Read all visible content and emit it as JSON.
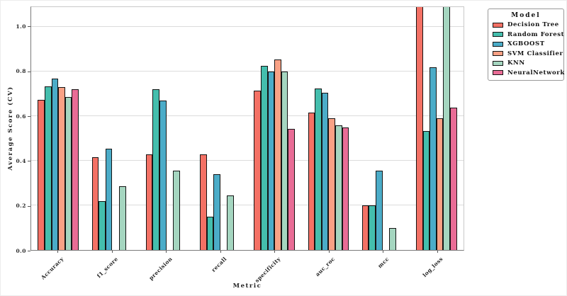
{
  "figure": {
    "x_axis_label": "Metric",
    "y_axis_label": "Average Score (CV)",
    "legend_title": "Model"
  },
  "chart_data": {
    "type": "bar",
    "title": "",
    "xlabel": "Metric",
    "ylabel": "Average Score (CV)",
    "ylim": [
      0,
      1.09
    ],
    "yticks": [
      0.0,
      0.2,
      0.4,
      0.6,
      0.8,
      1.0
    ],
    "ytick_labels": [
      "0.0",
      "0.2",
      "0.4",
      "0.6",
      "0.8",
      "1.0"
    ],
    "grid": "horizontal",
    "legend_title": "Model",
    "legend_position": "outside-upper-right",
    "categories": [
      "Accuracy",
      "f1_score",
      "precision",
      "recall",
      "specificity",
      "auc_roc",
      "mcc",
      "log_loss"
    ],
    "series": [
      {
        "name": "Decision Tree",
        "color": "#F47165",
        "values": [
          0.675,
          0.415,
          0.43,
          0.43,
          0.715,
          0.615,
          0.2,
          1.1
        ]
      },
      {
        "name": "Random Forest",
        "color": "#44BEAD",
        "values": [
          0.735,
          0.22,
          0.72,
          0.15,
          0.825,
          0.725,
          0.2,
          0.535
        ]
      },
      {
        "name": "XGBOOST",
        "color": "#4BACC8",
        "values": [
          0.77,
          0.455,
          0.67,
          0.34,
          0.8,
          0.705,
          0.355,
          0.82
        ]
      },
      {
        "name": "SVM Classifier",
        "color": "#F9A185",
        "values": [
          0.73,
          null,
          null,
          null,
          0.855,
          0.59,
          null,
          0.59
        ]
      },
      {
        "name": "KNN",
        "color": "#A5D6C0",
        "values": [
          0.685,
          0.285,
          0.355,
          0.245,
          0.8,
          0.56,
          0.1,
          1.1
        ]
      },
      {
        "name": "NeuralNetwork",
        "color": "#E96C96",
        "values": [
          0.72,
          null,
          null,
          null,
          0.545,
          0.55,
          null,
          0.64
        ]
      }
    ]
  }
}
